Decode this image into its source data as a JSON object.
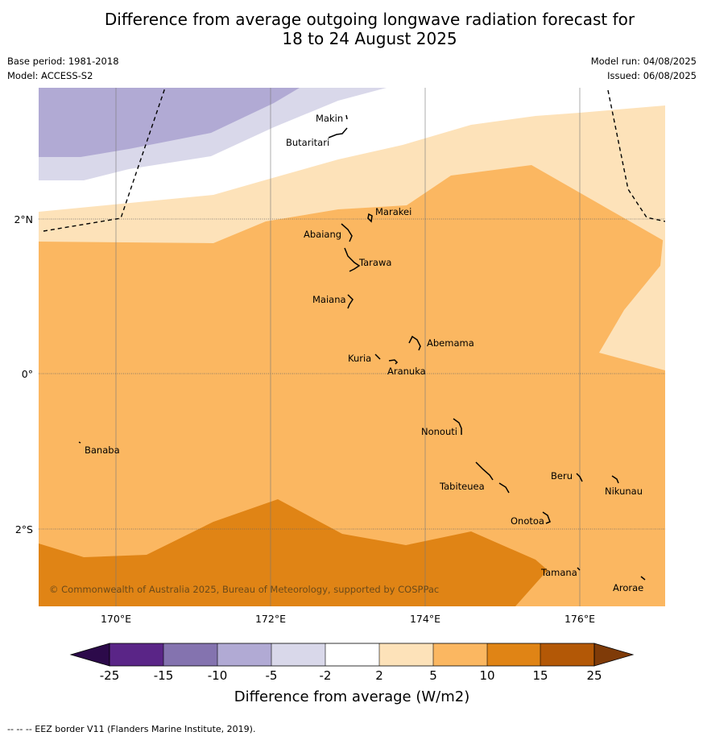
{
  "title": {
    "line1": "Difference from average outgoing longwave radiation forecast for",
    "line2": "18 to 24 August 2025"
  },
  "meta": {
    "base_period": "Base period: 1981-2018",
    "model": "Model: ACCESS-S2",
    "model_run": "Model run: 04/08/2025",
    "issued": "Issued: 06/08/2025"
  },
  "map": {
    "lon_labels": [
      "170°E",
      "172°E",
      "174°E",
      "176°E"
    ],
    "lat_labels": [
      "2°N",
      "0°",
      "2°S"
    ],
    "copyright": "© Commonwealth of Australia 2025, Bureau of Meteorology, supported by COSPPac",
    "places": [
      {
        "name": "Makin"
      },
      {
        "name": "Butaritari"
      },
      {
        "name": "Marakei"
      },
      {
        "name": "Abaiang"
      },
      {
        "name": "Tarawa"
      },
      {
        "name": "Maiana"
      },
      {
        "name": "Abemama"
      },
      {
        "name": "Kuria"
      },
      {
        "name": "Aranuka"
      },
      {
        "name": "Nonouti"
      },
      {
        "name": "Banaba"
      },
      {
        "name": "Beru"
      },
      {
        "name": "Nikunau"
      },
      {
        "name": "Tabiteuea"
      },
      {
        "name": "Onotoa"
      },
      {
        "name": "Tamana"
      },
      {
        "name": "Arorae"
      }
    ]
  },
  "colorbar": {
    "ticks": [
      "-25",
      "-15",
      "-10",
      "-5",
      "-2",
      "2",
      "5",
      "10",
      "15",
      "25"
    ],
    "label": "Difference from average (W/m2)",
    "colors": {
      "lt_minus25": "#2c0a4a",
      "m25_m15": "#5a2587",
      "m15_m10": "#8473af",
      "m10_m5": "#b1aad4",
      "m5_m2": "#d9d8ea",
      "m2_p2": "#ffffff",
      "p2_p5": "#fde2b9",
      "p5_p10": "#fbb761",
      "p10_p15": "#e08415",
      "p15_p25": "#b35806",
      "gt_p25": "#7f3b08"
    }
  },
  "footnote": "--  --  -- EEZ border V11 (Flanders Marine Institute, 2019)."
}
